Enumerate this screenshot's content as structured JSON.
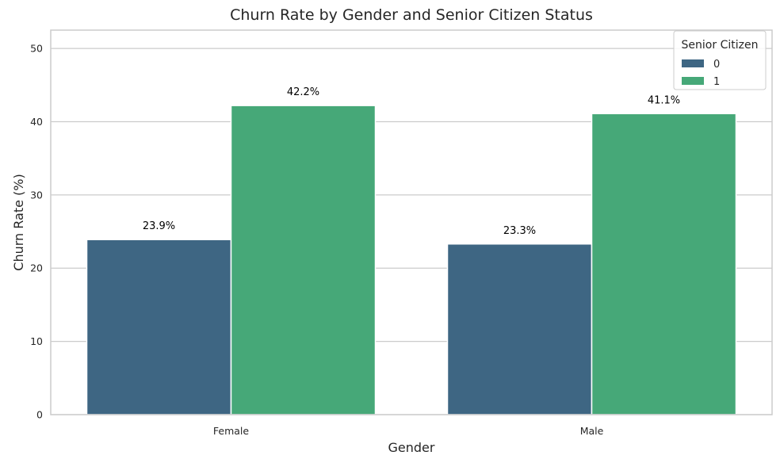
{
  "chart_data": {
    "type": "bar",
    "title": "Churn Rate by Gender and Senior Citizen Status",
    "xlabel": "Gender",
    "ylabel": "Churn Rate (%)",
    "categories": [
      "Female",
      "Male"
    ],
    "series": [
      {
        "name": "0",
        "values": [
          23.9,
          23.3
        ],
        "labels": [
          "23.9%",
          "23.3%"
        ],
        "color": "#3e6683"
      },
      {
        "name": "1",
        "values": [
          42.2,
          41.1
        ],
        "labels": [
          "42.2%",
          "41.1%"
        ],
        "color": "#46a878"
      }
    ],
    "ylim": [
      0,
      52.5
    ],
    "yticks": [
      0,
      10,
      20,
      30,
      40,
      50
    ],
    "grid": true,
    "legend": {
      "title": "Senior Citizen",
      "placement": "top-right"
    }
  }
}
